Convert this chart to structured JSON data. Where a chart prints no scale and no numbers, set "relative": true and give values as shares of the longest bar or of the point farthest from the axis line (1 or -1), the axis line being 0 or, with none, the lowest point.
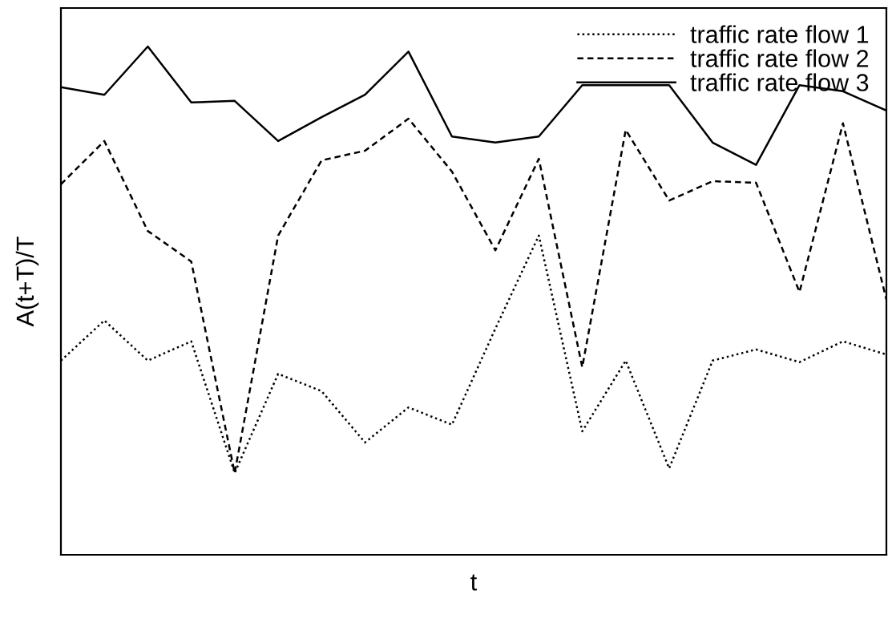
{
  "chart_data": {
    "type": "line",
    "relative": true,
    "xlabel": "t",
    "ylabel": "A(t+T)/T",
    "categories": [
      null,
      null,
      null,
      null,
      null,
      null,
      null,
      null,
      null,
      null,
      null,
      null,
      null,
      null,
      null,
      null,
      null,
      null,
      null,
      null
    ],
    "series": [
      {
        "name": "traffic rate flow 1",
        "color": "#000000",
        "line_style": "dotted",
        "values": [
          0.382,
          0.461,
          0.382,
          0.42,
          0.161,
          0.356,
          0.322,
          0.221,
          0.29,
          0.256,
          0.445,
          0.628,
          0.243,
          0.382,
          0.17,
          0.382,
          0.404,
          0.379,
          0.42,
          0.394
        ]
      },
      {
        "name": "traffic rate flow 2",
        "color": "#000000",
        "line_style": "dashed",
        "values": [
          0.729,
          0.814,
          0.637,
          0.577,
          0.161,
          0.628,
          0.776,
          0.795,
          0.858,
          0.754,
          0.599,
          0.779,
          0.369,
          0.836,
          0.697,
          0.735,
          0.732,
          0.517,
          0.849,
          0.502
        ]
      },
      {
        "name": "traffic rate flow 3",
        "color": "#000000",
        "line_style": "solid",
        "values": [
          0.92,
          0.905,
          1,
          0.89,
          0.893,
          0.814,
          0.861,
          0.905,
          0.99,
          0.823,
          0.811,
          0.823,
          0.924,
          0.924,
          0.924,
          0.811,
          0.767,
          0.924,
          0.912,
          0.874
        ]
      }
    ],
    "legend": "top right",
    "tick_labels": false,
    "grid": false,
    "marker": "none"
  }
}
